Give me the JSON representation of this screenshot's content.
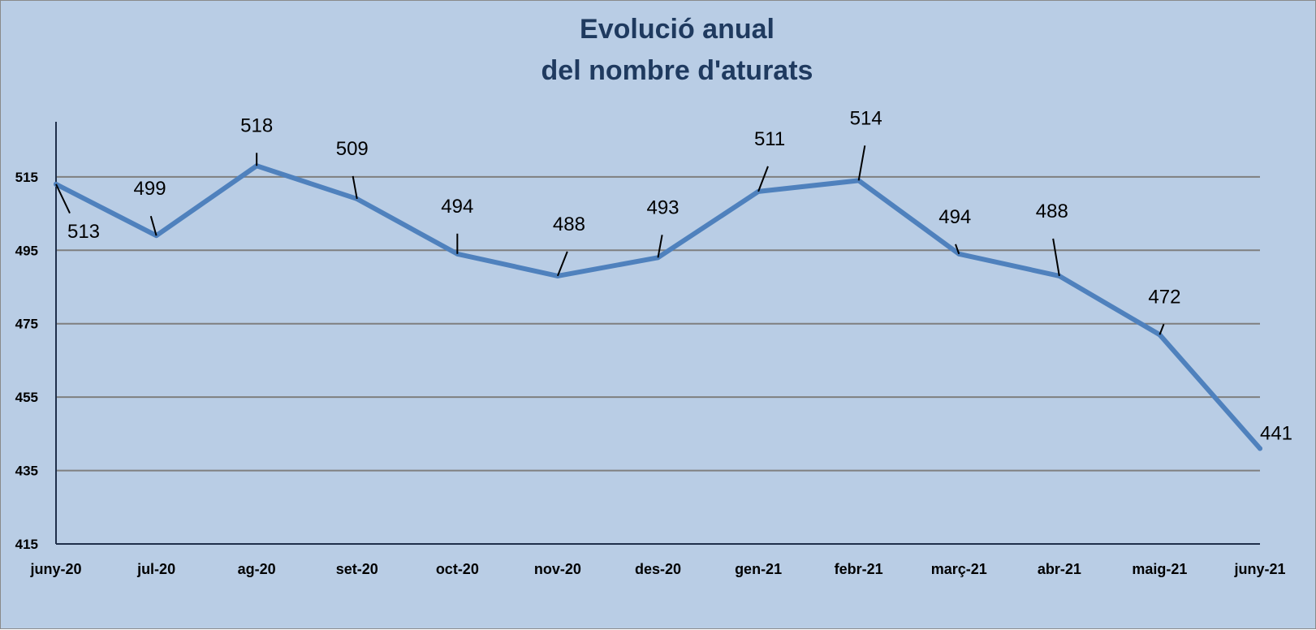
{
  "chart_data": {
    "type": "line",
    "title_lines": [
      "Evolució anual",
      "del nombre d'aturats"
    ],
    "categories": [
      "juny-20",
      "jul-20",
      "ag-20",
      "set-20",
      "oct-20",
      "nov-20",
      "des-20",
      "gen-21",
      "febr-21",
      "març-21",
      "abr-21",
      "maig-21",
      "juny-21"
    ],
    "series": [
      {
        "values": [
          513,
          499,
          518,
          509,
          494,
          488,
          493,
          511,
          514,
          494,
          488,
          472,
          441
        ]
      }
    ],
    "data_labels": [
      "513",
      "499",
      "518",
      "509",
      "494",
      "488",
      "493",
      "511",
      "514",
      "494",
      "488",
      "472",
      "441"
    ],
    "yticks": [
      415,
      435,
      455,
      475,
      495,
      515
    ],
    "ytick_labels": [
      "415",
      "435",
      "455",
      "475",
      "495",
      "515"
    ],
    "ylim": [
      415,
      530
    ],
    "grid": true,
    "legend": "none",
    "colors": {
      "background": "#b9cde5",
      "line": "#4f81bd",
      "grid": "#7f7f7f",
      "title": "#1f3a5f"
    }
  }
}
